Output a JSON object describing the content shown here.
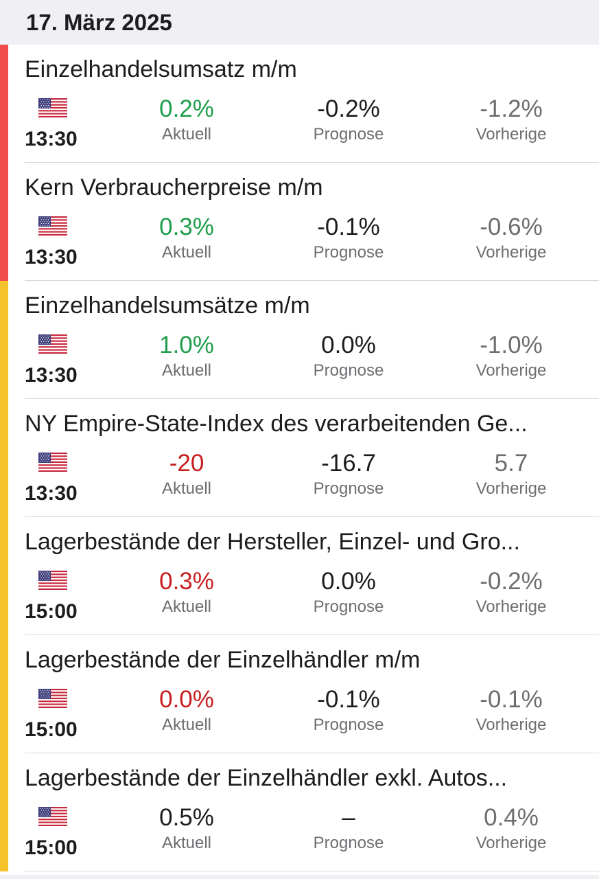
{
  "header": {
    "date": "17. März 2025"
  },
  "colors": {
    "high_impact": "#f04a4a",
    "medium_impact": "#f5c22b",
    "positive": "#1e9e4a",
    "negative": "#c81e1e"
  },
  "labels": {
    "actual": "Aktuell",
    "forecast": "Prognose",
    "previous": "Vorherige"
  },
  "events": [
    {
      "title": "Einzelhandelsumsatz m/m",
      "country_icon": "us-flag-icon",
      "time": "13:30",
      "impact": "high",
      "actual": "0.2%",
      "actual_trend": "green",
      "forecast": "-0.2%",
      "previous": "-1.2%"
    },
    {
      "title": "Kern Verbraucherpreise m/m",
      "country_icon": "us-flag-icon",
      "time": "13:30",
      "impact": "high",
      "actual": "0.3%",
      "actual_trend": "green",
      "forecast": "-0.1%",
      "previous": "-0.6%"
    },
    {
      "title": "Einzelhandelsumsätze m/m",
      "country_icon": "us-flag-icon",
      "time": "13:30",
      "impact": "medium",
      "actual": "1.0%",
      "actual_trend": "green",
      "forecast": "0.0%",
      "previous": "-1.0%"
    },
    {
      "title": "NY Empire-State-Index des verarbeitenden Ge...",
      "country_icon": "us-flag-icon",
      "time": "13:30",
      "impact": "medium",
      "actual": "-20",
      "actual_trend": "red",
      "forecast": "-16.7",
      "previous": "5.7"
    },
    {
      "title": "Lagerbestände der Hersteller, Einzel- und Gro...",
      "country_icon": "us-flag-icon",
      "time": "15:00",
      "impact": "medium",
      "actual": "0.3%",
      "actual_trend": "red",
      "forecast": "0.0%",
      "previous": "-0.2%"
    },
    {
      "title": "Lagerbestände der Einzelhändler m/m",
      "country_icon": "us-flag-icon",
      "time": "15:00",
      "impact": "medium",
      "actual": "0.0%",
      "actual_trend": "red",
      "forecast": "-0.1%",
      "previous": "-0.1%"
    },
    {
      "title": "Lagerbestände der Einzelhändler exkl. Autos...",
      "country_icon": "us-flag-icon",
      "time": "15:00",
      "impact": "medium",
      "actual": "0.5%",
      "actual_trend": "black",
      "forecast": "–",
      "previous": "0.4%"
    }
  ]
}
